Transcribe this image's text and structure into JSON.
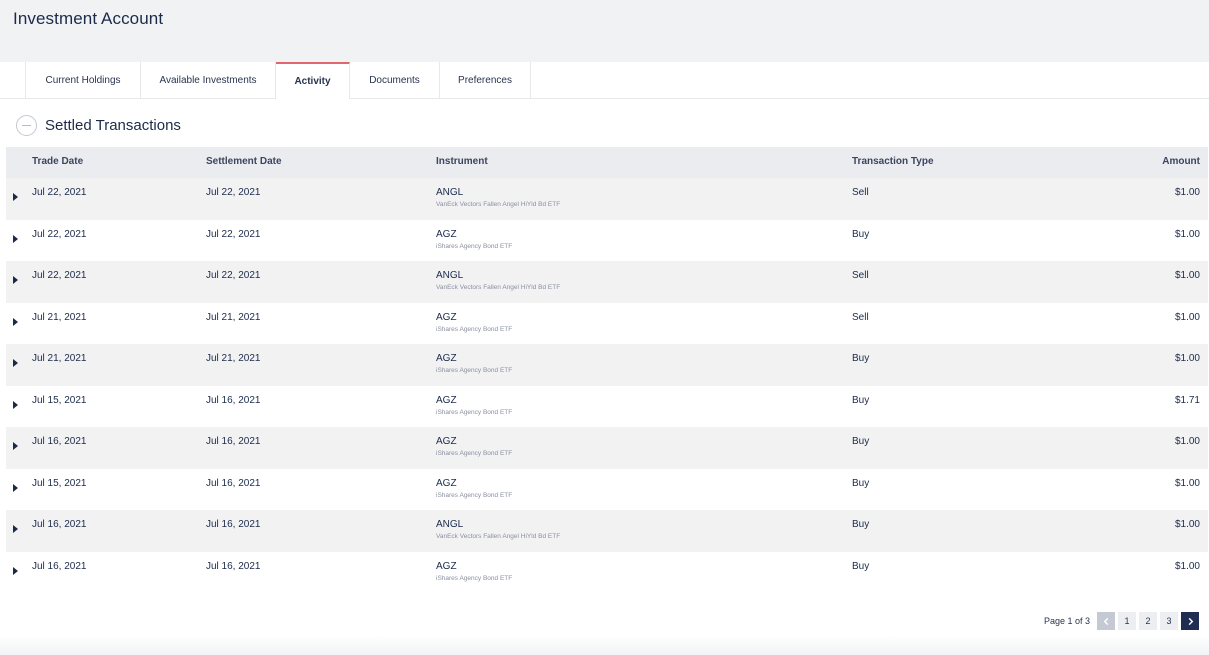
{
  "header": {
    "title": "Investment Account"
  },
  "tabs": [
    {
      "label": "Current Holdings"
    },
    {
      "label": "Available Investments"
    },
    {
      "label": "Activity"
    },
    {
      "label": "Documents"
    },
    {
      "label": "Preferences"
    }
  ],
  "section": {
    "title": "Settled Transactions"
  },
  "table": {
    "columns": [
      "Trade Date",
      "Settlement Date",
      "Instrument",
      "Transaction Type",
      "Amount"
    ],
    "rows": [
      {
        "trade_date": "Jul 22, 2021",
        "settlement_date": "Jul 22, 2021",
        "symbol": "ANGL",
        "name": "VanEck Vectors Fallen Angel HiYld Bd ETF",
        "type": "Sell",
        "amount": "$1.00"
      },
      {
        "trade_date": "Jul 22, 2021",
        "settlement_date": "Jul 22, 2021",
        "symbol": "AGZ",
        "name": "iShares Agency Bond ETF",
        "type": "Buy",
        "amount": "$1.00"
      },
      {
        "trade_date": "Jul 22, 2021",
        "settlement_date": "Jul 22, 2021",
        "symbol": "ANGL",
        "name": "VanEck Vectors Fallen Angel HiYld Bd ETF",
        "type": "Sell",
        "amount": "$1.00"
      },
      {
        "trade_date": "Jul 21, 2021",
        "settlement_date": "Jul 21, 2021",
        "symbol": "AGZ",
        "name": "iShares Agency Bond ETF",
        "type": "Sell",
        "amount": "$1.00"
      },
      {
        "trade_date": "Jul 21, 2021",
        "settlement_date": "Jul 21, 2021",
        "symbol": "AGZ",
        "name": "iShares Agency Bond ETF",
        "type": "Buy",
        "amount": "$1.00"
      },
      {
        "trade_date": "Jul 15, 2021",
        "settlement_date": "Jul 16, 2021",
        "symbol": "AGZ",
        "name": "iShares Agency Bond ETF",
        "type": "Buy",
        "amount": "$1.71"
      },
      {
        "trade_date": "Jul 16, 2021",
        "settlement_date": "Jul 16, 2021",
        "symbol": "AGZ",
        "name": "iShares Agency Bond ETF",
        "type": "Buy",
        "amount": "$1.00"
      },
      {
        "trade_date": "Jul 15, 2021",
        "settlement_date": "Jul 16, 2021",
        "symbol": "AGZ",
        "name": "iShares Agency Bond ETF",
        "type": "Buy",
        "amount": "$1.00"
      },
      {
        "trade_date": "Jul 16, 2021",
        "settlement_date": "Jul 16, 2021",
        "symbol": "ANGL",
        "name": "VanEck Vectors Fallen Angel HiYld Bd ETF",
        "type": "Buy",
        "amount": "$1.00"
      },
      {
        "trade_date": "Jul 16, 2021",
        "settlement_date": "Jul 16, 2021",
        "symbol": "AGZ",
        "name": "iShares Agency Bond ETF",
        "type": "Buy",
        "amount": "$1.00"
      }
    ]
  },
  "pagination": {
    "label": "Page 1 of 3",
    "pages": [
      "1",
      "2",
      "3"
    ],
    "prev_icon": "chevron-left-icon",
    "next_icon": "chevron-right-icon"
  },
  "colors": {
    "accent_tab": "#e0676e",
    "navy": "#1f2d52"
  }
}
